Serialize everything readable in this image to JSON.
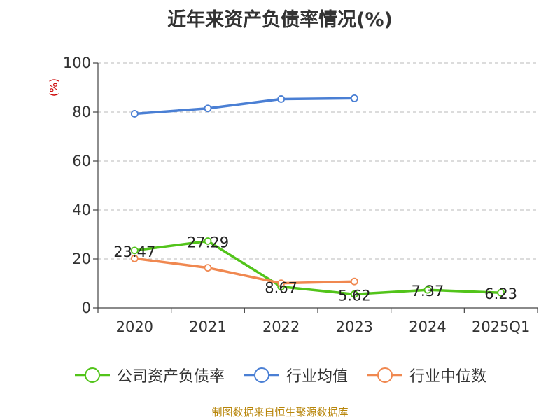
{
  "chart_data": {
    "type": "line",
    "title": "近年来资产负债率情况(%)",
    "ylabel": "(%)",
    "categories": [
      "2020",
      "2021",
      "2022",
      "2023",
      "2024",
      "2025Q1"
    ],
    "ylim": [
      0,
      100
    ],
    "yticks": [
      "0",
      "20",
      "40",
      "60",
      "80",
      "100"
    ],
    "grid": true,
    "legend_position": "bottom",
    "series": [
      {
        "name": "公司资产负债率",
        "color": "#52c41a",
        "values": [
          23.47,
          27.29,
          8.67,
          5.62,
          7.37,
          6.23
        ],
        "labels": [
          "23.47",
          "27.29",
          "8.67",
          "5.62",
          "7.37",
          "6.23"
        ]
      },
      {
        "name": "行业均值",
        "color": "#4a7fd4",
        "values": [
          79.3,
          81.5,
          85.3,
          85.6,
          null,
          null
        ]
      },
      {
        "name": "行业中位数",
        "color": "#f08850",
        "values": [
          20.2,
          16.4,
          10.1,
          10.8,
          null,
          null
        ]
      }
    ]
  },
  "source": "制图数据来自恒生聚源数据库"
}
